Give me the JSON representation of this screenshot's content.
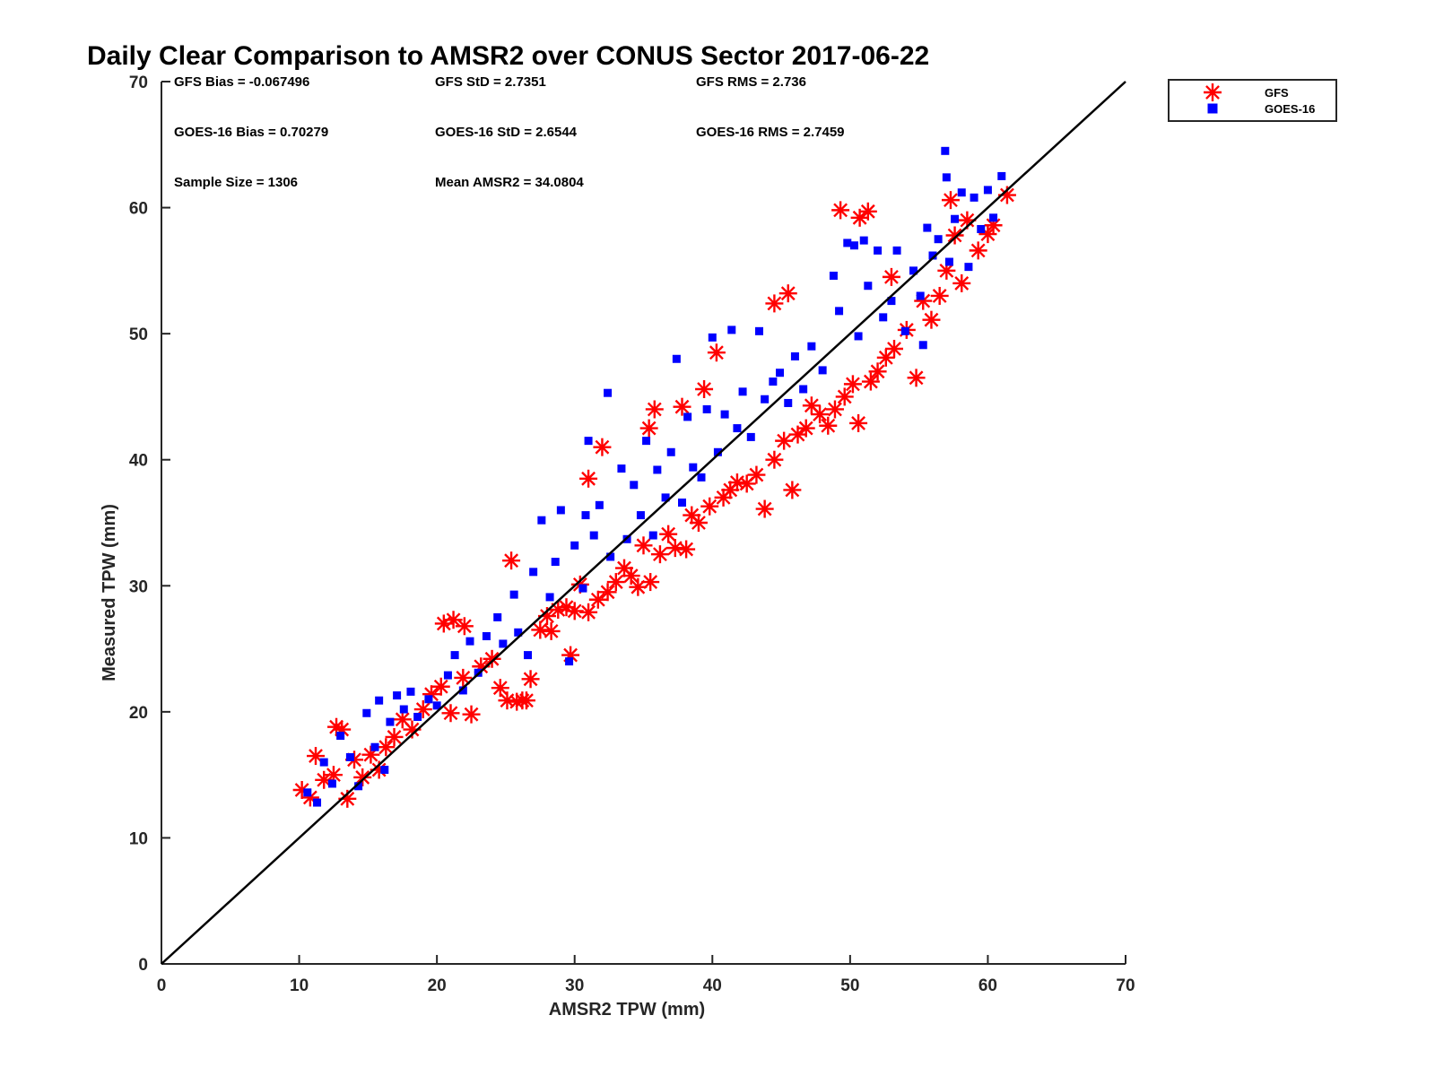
{
  "chart_data": {
    "type": "scatter",
    "title": "Daily Clear Comparison to AMSR2 over CONUS Sector 2017-06-22",
    "xlabel": "AMSR2 TPW (mm)",
    "ylabel": "Measured TPW (mm)",
    "xlim": [
      0,
      70
    ],
    "ylim": [
      0,
      70
    ],
    "xticks": [
      "0",
      "10",
      "20",
      "30",
      "40",
      "50",
      "60",
      "70"
    ],
    "yticks": [
      "0",
      "10",
      "20",
      "30",
      "40",
      "50",
      "60",
      "70"
    ],
    "grid": false,
    "legend_position": "top-right, outside plot",
    "reference_line": {
      "from": [
        0,
        0
      ],
      "to": [
        70,
        70
      ],
      "color": "#000000"
    },
    "stats": [
      "GFS Bias = -0.067496",
      "GFS StD = 2.7351",
      "GFS RMS = 2.736",
      "GOES-16 Bias = 0.70279",
      "GOES-16 StD = 2.6544",
      "GOES-16 RMS = 2.7459",
      "Sample Size = 1306",
      "Mean AMSR2 = 34.0804"
    ],
    "series": [
      {
        "name": "GFS",
        "marker": "asterisk",
        "color": "#ff0000",
        "points": [
          [
            10.2,
            13.8
          ],
          [
            10.8,
            13.2
          ],
          [
            11.2,
            16.5
          ],
          [
            11.8,
            14.6
          ],
          [
            12.5,
            15.0
          ],
          [
            12.7,
            18.8
          ],
          [
            13.1,
            18.6
          ],
          [
            13.5,
            13.1
          ],
          [
            14.0,
            16.2
          ],
          [
            14.6,
            14.8
          ],
          [
            15.2,
            16.6
          ],
          [
            15.8,
            15.4
          ],
          [
            16.3,
            17.2
          ],
          [
            16.9,
            18.0
          ],
          [
            17.5,
            19.4
          ],
          [
            18.2,
            18.6
          ],
          [
            19.0,
            20.2
          ],
          [
            19.6,
            21.4
          ],
          [
            20.3,
            22.0
          ],
          [
            20.5,
            27.0
          ],
          [
            21.0,
            19.9
          ],
          [
            21.2,
            27.3
          ],
          [
            21.9,
            22.7
          ],
          [
            22.0,
            26.8
          ],
          [
            22.5,
            19.8
          ],
          [
            23.2,
            23.6
          ],
          [
            24.0,
            24.2
          ],
          [
            24.6,
            21.9
          ],
          [
            25.1,
            20.9
          ],
          [
            25.4,
            32.0
          ],
          [
            25.8,
            20.8
          ],
          [
            26.2,
            20.9
          ],
          [
            26.5,
            20.9
          ],
          [
            26.8,
            22.6
          ],
          [
            27.5,
            26.5
          ],
          [
            28.0,
            27.6
          ],
          [
            28.3,
            26.4
          ],
          [
            28.8,
            28.1
          ],
          [
            29.4,
            28.3
          ],
          [
            29.7,
            24.5
          ],
          [
            30.0,
            28.0
          ],
          [
            30.4,
            30.1
          ],
          [
            31.0,
            27.9
          ],
          [
            31.0,
            38.5
          ],
          [
            31.7,
            28.9
          ],
          [
            32.0,
            41.0
          ],
          [
            32.4,
            29.5
          ],
          [
            33.0,
            30.3
          ],
          [
            33.6,
            31.4
          ],
          [
            34.1,
            30.8
          ],
          [
            34.6,
            29.9
          ],
          [
            35.0,
            33.2
          ],
          [
            35.4,
            42.5
          ],
          [
            35.5,
            30.3
          ],
          [
            35.8,
            44.0
          ],
          [
            36.2,
            32.5
          ],
          [
            36.8,
            34.1
          ],
          [
            37.3,
            33.0
          ],
          [
            37.8,
            44.2
          ],
          [
            38.1,
            32.9
          ],
          [
            38.5,
            35.6
          ],
          [
            39.0,
            35.0
          ],
          [
            39.4,
            45.6
          ],
          [
            39.8,
            36.3
          ],
          [
            40.3,
            48.5
          ],
          [
            40.8,
            37.0
          ],
          [
            41.3,
            37.6
          ],
          [
            41.8,
            38.2
          ],
          [
            42.5,
            38.1
          ],
          [
            43.2,
            38.8
          ],
          [
            43.8,
            36.1
          ],
          [
            44.5,
            40.0
          ],
          [
            44.5,
            52.4
          ],
          [
            45.2,
            41.5
          ],
          [
            45.5,
            53.2
          ],
          [
            45.8,
            37.6
          ],
          [
            46.2,
            42.0
          ],
          [
            46.8,
            42.5
          ],
          [
            47.2,
            44.3
          ],
          [
            47.8,
            43.6
          ],
          [
            48.4,
            42.7
          ],
          [
            48.9,
            44.0
          ],
          [
            49.3,
            59.8
          ],
          [
            49.6,
            45.0
          ],
          [
            50.2,
            46.0
          ],
          [
            50.6,
            42.9
          ],
          [
            50.7,
            59.2
          ],
          [
            51.3,
            59.7
          ],
          [
            51.5,
            46.2
          ],
          [
            52.0,
            47.0
          ],
          [
            52.6,
            48.1
          ],
          [
            53.0,
            54.5
          ],
          [
            53.2,
            48.8
          ],
          [
            54.1,
            50.3
          ],
          [
            54.8,
            46.5
          ],
          [
            55.3,
            52.6
          ],
          [
            55.9,
            51.1
          ],
          [
            56.5,
            53.0
          ],
          [
            57.0,
            55.0
          ],
          [
            57.3,
            60.6
          ],
          [
            57.6,
            57.8
          ],
          [
            58.1,
            54.0
          ],
          [
            58.5,
            59.0
          ],
          [
            59.3,
            56.6
          ],
          [
            60.0,
            57.9
          ],
          [
            60.4,
            58.6
          ],
          [
            61.4,
            61.0
          ]
        ]
      },
      {
        "name": "GOES-16",
        "marker": "square",
        "color": "#0000ff",
        "points": [
          [
            10.6,
            13.6
          ],
          [
            11.3,
            12.8
          ],
          [
            11.8,
            16.0
          ],
          [
            12.4,
            14.3
          ],
          [
            13.0,
            18.1
          ],
          [
            13.7,
            16.4
          ],
          [
            14.3,
            14.1
          ],
          [
            14.9,
            19.9
          ],
          [
            15.5,
            17.2
          ],
          [
            15.8,
            20.9
          ],
          [
            16.2,
            15.4
          ],
          [
            16.6,
            19.2
          ],
          [
            17.1,
            21.3
          ],
          [
            17.6,
            20.2
          ],
          [
            18.1,
            21.6
          ],
          [
            18.6,
            19.6
          ],
          [
            19.4,
            21.0
          ],
          [
            20.0,
            20.5
          ],
          [
            20.8,
            22.9
          ],
          [
            21.3,
            24.5
          ],
          [
            21.9,
            21.7
          ],
          [
            22.4,
            25.6
          ],
          [
            23.0,
            23.1
          ],
          [
            23.6,
            26.0
          ],
          [
            24.4,
            27.5
          ],
          [
            24.8,
            25.4
          ],
          [
            25.6,
            29.3
          ],
          [
            25.9,
            26.3
          ],
          [
            26.6,
            24.5
          ],
          [
            27.0,
            31.1
          ],
          [
            27.6,
            35.2
          ],
          [
            28.2,
            29.1
          ],
          [
            28.6,
            31.9
          ],
          [
            29.0,
            36.0
          ],
          [
            29.6,
            24.0
          ],
          [
            30.0,
            33.2
          ],
          [
            30.6,
            29.8
          ],
          [
            30.8,
            35.6
          ],
          [
            31.0,
            41.5
          ],
          [
            31.4,
            34.0
          ],
          [
            31.8,
            36.4
          ],
          [
            32.4,
            45.3
          ],
          [
            32.6,
            32.3
          ],
          [
            33.4,
            39.3
          ],
          [
            33.8,
            33.7
          ],
          [
            34.3,
            38.0
          ],
          [
            34.8,
            35.6
          ],
          [
            35.2,
            41.5
          ],
          [
            35.7,
            34.0
          ],
          [
            36.0,
            39.2
          ],
          [
            36.6,
            37.0
          ],
          [
            37.0,
            40.6
          ],
          [
            37.4,
            48.0
          ],
          [
            37.8,
            36.6
          ],
          [
            38.2,
            43.4
          ],
          [
            38.6,
            39.4
          ],
          [
            39.2,
            38.6
          ],
          [
            39.6,
            44.0
          ],
          [
            40.0,
            49.7
          ],
          [
            40.4,
            40.6
          ],
          [
            40.9,
            43.6
          ],
          [
            41.4,
            50.3
          ],
          [
            41.8,
            42.5
          ],
          [
            42.2,
            45.4
          ],
          [
            42.8,
            41.8
          ],
          [
            43.4,
            50.2
          ],
          [
            43.8,
            44.8
          ],
          [
            44.4,
            46.2
          ],
          [
            44.9,
            46.9
          ],
          [
            45.5,
            44.5
          ],
          [
            46.0,
            48.2
          ],
          [
            46.6,
            45.6
          ],
          [
            47.2,
            49.0
          ],
          [
            48.0,
            47.1
          ],
          [
            48.8,
            54.6
          ],
          [
            49.2,
            51.8
          ],
          [
            49.8,
            57.2
          ],
          [
            50.3,
            57.0
          ],
          [
            50.6,
            49.8
          ],
          [
            51.0,
            57.4
          ],
          [
            51.3,
            53.8
          ],
          [
            52.0,
            56.6
          ],
          [
            52.4,
            51.3
          ],
          [
            53.0,
            52.6
          ],
          [
            53.4,
            56.6
          ],
          [
            54.0,
            50.2
          ],
          [
            54.6,
            55.0
          ],
          [
            55.1,
            53.0
          ],
          [
            55.3,
            49.1
          ],
          [
            55.6,
            58.4
          ],
          [
            56.0,
            56.2
          ],
          [
            56.4,
            57.5
          ],
          [
            56.9,
            64.5
          ],
          [
            57.0,
            62.4
          ],
          [
            57.2,
            55.7
          ],
          [
            57.6,
            59.1
          ],
          [
            58.1,
            61.2
          ],
          [
            58.6,
            55.3
          ],
          [
            59.0,
            60.8
          ],
          [
            59.5,
            58.3
          ],
          [
            60.0,
            61.4
          ],
          [
            60.4,
            59.2
          ],
          [
            61.0,
            62.5
          ]
        ]
      }
    ]
  }
}
